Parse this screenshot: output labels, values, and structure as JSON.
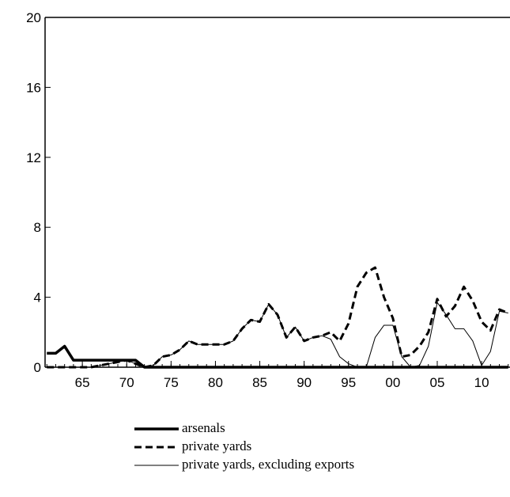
{
  "chart_data": {
    "type": "line",
    "x": [
      1961,
      1962,
      1963,
      1964,
      1965,
      1966,
      1967,
      1968,
      1969,
      1970,
      1971,
      1972,
      1973,
      1974,
      1975,
      1976,
      1977,
      1978,
      1979,
      1980,
      1981,
      1982,
      1983,
      1984,
      1985,
      1986,
      1987,
      1988,
      1989,
      1990,
      1991,
      1992,
      1993,
      1994,
      1995,
      1996,
      1997,
      1998,
      1999,
      2000,
      2001,
      2002,
      2003,
      2004,
      2005,
      2006,
      2007,
      2008,
      2009,
      2010,
      2011,
      2012,
      2013
    ],
    "series": [
      {
        "name": "arsenals",
        "color": "#000000",
        "style": "thick",
        "values": [
          0.8,
          0.8,
          1.2,
          0.4,
          0.4,
          0.4,
          0.4,
          0.4,
          0.4,
          0.4,
          0.4,
          0,
          0,
          0,
          0,
          0,
          0,
          0,
          0,
          0,
          0,
          0,
          0,
          0,
          0,
          0,
          0,
          0,
          0,
          0,
          0,
          0,
          0,
          0,
          0,
          0,
          0,
          0,
          0,
          0,
          0,
          0,
          0,
          0,
          0,
          0,
          0,
          0,
          0,
          0,
          0,
          0,
          0
        ]
      },
      {
        "name": "private yards",
        "color": "#000000",
        "style": "dashed",
        "values": [
          0,
          0,
          0,
          0,
          0,
          0,
          0.1,
          0.2,
          0.3,
          0.4,
          0.2,
          0,
          0.1,
          0.6,
          0.7,
          1.0,
          1.5,
          1.3,
          1.3,
          1.3,
          1.3,
          1.5,
          2.2,
          2.7,
          2.6,
          3.6,
          3.0,
          1.7,
          2.3,
          1.5,
          1.7,
          1.8,
          2.0,
          1.5,
          2.5,
          4.6,
          5.4,
          5.7,
          4.0,
          2.8,
          0.6,
          0.7,
          1.2,
          2.0,
          3.9,
          2.9,
          3.5,
          4.6,
          3.8,
          2.6,
          2.1,
          3.3,
          3.1
        ]
      },
      {
        "name": "private yards, excluding exports",
        "color": "#000000",
        "style": "thin",
        "values": [
          0,
          0,
          0,
          0,
          0,
          0,
          0.1,
          0.2,
          0.3,
          0.4,
          0.2,
          0,
          0.1,
          0.6,
          0.7,
          1.0,
          1.5,
          1.3,
          1.3,
          1.3,
          1.3,
          1.5,
          2.2,
          2.7,
          2.6,
          3.6,
          3.0,
          1.7,
          2.3,
          1.5,
          1.7,
          1.8,
          1.6,
          0.6,
          0.2,
          0,
          0,
          1.7,
          2.4,
          2.4,
          0.6,
          0,
          0.1,
          1.2,
          3.7,
          3.0,
          2.2,
          2.2,
          1.5,
          0.1,
          0.9,
          3.2,
          3.1
        ]
      }
    ],
    "xlim": [
      1960.8,
      2013.2
    ],
    "xticks": [
      {
        "value": 1965,
        "label": "65"
      },
      {
        "value": 1970,
        "label": "70"
      },
      {
        "value": 1975,
        "label": "75"
      },
      {
        "value": 1980,
        "label": "80"
      },
      {
        "value": 1985,
        "label": "85"
      },
      {
        "value": 1990,
        "label": "90"
      },
      {
        "value": 1995,
        "label": "95"
      },
      {
        "value": 2000,
        "label": "00"
      },
      {
        "value": 2005,
        "label": "05"
      },
      {
        "value": 2010,
        "label": "10"
      }
    ],
    "ylim": [
      0,
      20
    ],
    "yticks": [
      0,
      4,
      8,
      12,
      16,
      20
    ]
  }
}
